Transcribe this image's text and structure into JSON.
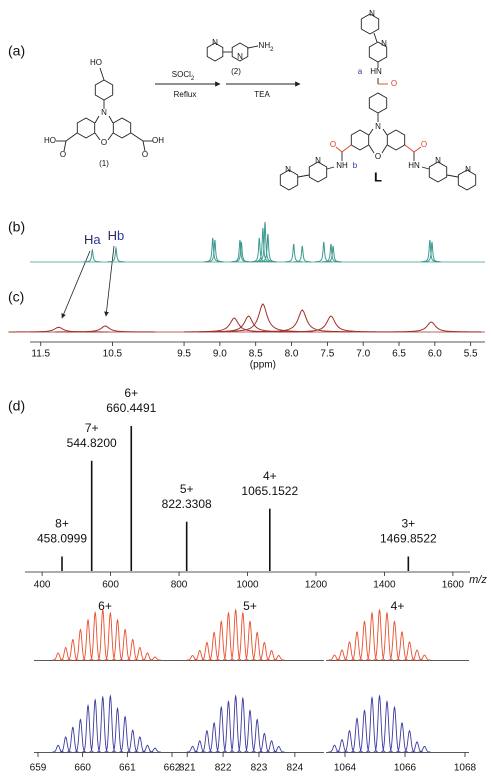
{
  "scheme": {
    "label": "(a)",
    "start_atoms": [
      "HO",
      "N",
      "O",
      "HO",
      "O",
      "O",
      "OH"
    ],
    "start_label": "(1)",
    "reagent_1": "SOCl",
    "reagent_1_sub": "2",
    "condition_1": "Reflux",
    "reagent_2_label": "(2)",
    "reagent_2_group": "NH",
    "reagent_2_group_sub": "2",
    "reagent_2_atoms": [
      "N",
      "N"
    ],
    "condition_2": "TEA",
    "product_atoms": [
      "N",
      "N",
      "HN",
      "O",
      "N",
      "O",
      "O",
      "NH",
      "N",
      "N",
      "O",
      "HN",
      "N",
      "N"
    ],
    "site_a": "a",
    "site_b": "b",
    "product_label": "L"
  },
  "nmr": {
    "xlim": [
      11.65,
      5.3
    ],
    "xticks": [
      11.5,
      10.5,
      9.5,
      {
        "value": 9,
        "label": "9.0"
      },
      8.5,
      {
        "value": 8,
        "label": "8.0"
      },
      7.5,
      {
        "value": 7,
        "label": "7.0"
      },
      6.5,
      {
        "value": 6,
        "label": "6.0"
      },
      5.5
    ],
    "xlabel": "(ppm)",
    "peak_labels": [
      {
        "atom": "H",
        "site": "a"
      },
      {
        "atom": "H",
        "site": "b"
      }
    ],
    "spectra": [
      {
        "label": "(b)",
        "color": "#3a9a8f",
        "ppm": [
          10.78,
          10.45,
          9.1,
          9.07,
          8.72,
          8.7,
          8.45,
          8.4,
          8.37,
          8.33,
          7.97,
          7.85,
          7.55,
          7.45,
          7.42,
          6.07,
          6.04
        ],
        "values": [
          0.3,
          0.35,
          0.6,
          0.55,
          0.55,
          0.5,
          0.6,
          0.85,
          1.0,
          0.7,
          0.45,
          0.4,
          0.5,
          0.45,
          0.4,
          0.55,
          0.5
        ]
      },
      {
        "label": "(c)",
        "color": "#a0302a",
        "ppm": [
          11.25,
          10.6,
          8.8,
          8.6,
          8.4,
          7.85,
          7.45,
          6.05
        ],
        "values": [
          0.12,
          0.15,
          0.35,
          0.4,
          0.7,
          0.55,
          0.4,
          0.25
        ]
      }
    ]
  },
  "mass_spectrum": {
    "label": "(d)",
    "color": "#111111",
    "xlim": [
      350,
      1650
    ],
    "xticks": [
      400,
      600,
      800,
      1000,
      1200,
      1400,
      1600
    ],
    "xlabel": "m/z",
    "mz": [
      458.0999,
      544.82,
      660.4491,
      822.3308,
      1065.1522,
      1469.8522
    ],
    "mass_labels": [
      "458.0999",
      "544.8200",
      "660.4491",
      "822.3308",
      "1065.1522",
      "1469.8522"
    ],
    "charge_labels": [
      "8+",
      "7+",
      "6+",
      "5+",
      "4+",
      "3+"
    ],
    "values": [
      10,
      76,
      100,
      34,
      43,
      10
    ]
  },
  "isotopes": {
    "calculated_color": "#e8502e",
    "observed_color": "#3b3b9e",
    "panels": [
      {
        "charge": "6+",
        "xlim": [
          659,
          662
        ],
        "xticks": [
          659,
          660,
          661,
          662
        ],
        "x": [
          659.45,
          659.62,
          659.78,
          659.95,
          660.12,
          660.28,
          660.45,
          660.62,
          660.78,
          660.95,
          661.12,
          661.28,
          661.45,
          661.62
        ],
        "calculated": [
          0.14,
          0.25,
          0.41,
          0.61,
          0.8,
          0.95,
          1,
          0.94,
          0.8,
          0.61,
          0.41,
          0.25,
          0.14,
          0.06
        ],
        "observed": [
          0.12,
          0.27,
          0.44,
          0.58,
          0.83,
          0.93,
          0.98,
          1,
          0.78,
          0.63,
          0.39,
          0.27,
          0.12,
          0.07
        ]
      },
      {
        "charge": "5+",
        "xlim": [
          820.8,
          824.7
        ],
        "xticks": [
          821,
          822,
          823,
          824
        ],
        "x": [
          821.15,
          821.35,
          821.55,
          821.75,
          821.95,
          822.15,
          822.35,
          822.55,
          822.75,
          822.95,
          823.15,
          823.35,
          823.55
        ],
        "calculated": [
          0.09,
          0.19,
          0.35,
          0.55,
          0.77,
          0.94,
          1,
          0.94,
          0.77,
          0.55,
          0.35,
          0.19,
          0.09
        ],
        "observed": [
          0.1,
          0.2,
          0.38,
          0.52,
          0.8,
          0.9,
          1,
          0.96,
          0.74,
          0.58,
          0.33,
          0.2,
          0.1
        ]
      },
      {
        "charge": "4+",
        "xlim": [
          1063.5,
          1068
        ],
        "xticks": [
          1064,
          1066,
          1068
        ],
        "x": [
          1063.65,
          1063.9,
          1064.15,
          1064.4,
          1064.65,
          1064.9,
          1065.15,
          1065.4,
          1065.65,
          1065.9,
          1066.15,
          1066.4,
          1066.65
        ],
        "calculated": [
          0.1,
          0.2,
          0.36,
          0.56,
          0.77,
          0.94,
          1,
          0.94,
          0.77,
          0.56,
          0.36,
          0.2,
          0.1
        ],
        "observed": [
          0.12,
          0.22,
          0.38,
          0.6,
          0.74,
          0.97,
          1,
          0.9,
          0.8,
          0.52,
          0.38,
          0.18,
          0.1
        ]
      }
    ]
  }
}
